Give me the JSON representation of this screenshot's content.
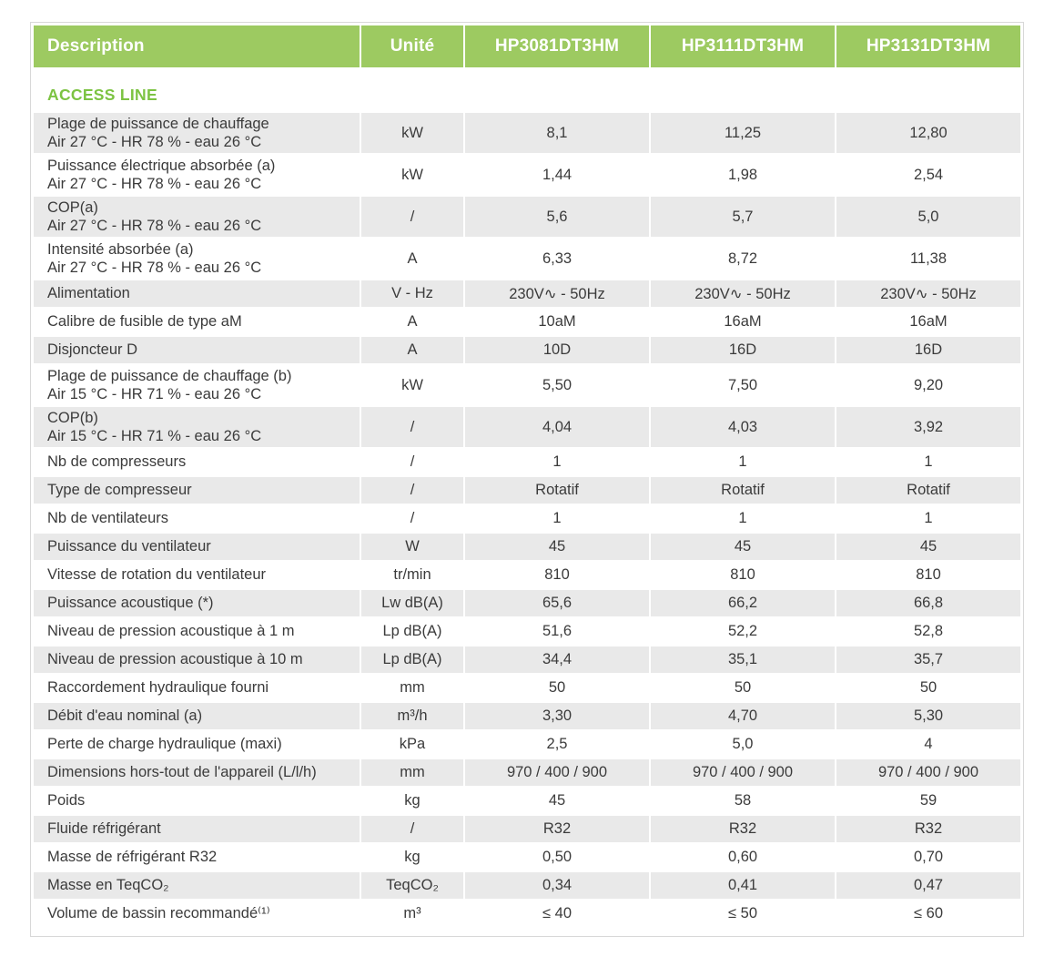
{
  "theme": {
    "header_green": "#9dca61",
    "section_green": "#7cc342",
    "row_gray": "#e9e9e9",
    "text_color": "#3b3b3b",
    "border_color": "#d8d8d8"
  },
  "table": {
    "columns": [
      "Description",
      "Unité",
      "HP3081DT3HM",
      "HP3111DT3HM",
      "HP3131DT3HM"
    ],
    "section": "ACCESS LINE",
    "rows": [
      {
        "label": "Plage de puissance de chauffage",
        "sublabel": "Air 27 °C - HR 78 % - eau 26 °C",
        "unit": "kW",
        "values": [
          "8,1",
          "11,25",
          "12,80"
        ]
      },
      {
        "label": "Puissance électrique absorbée (a)",
        "sublabel": "Air 27 °C - HR 78 % - eau 26 °C",
        "unit": "kW",
        "values": [
          "1,44",
          "1,98",
          "2,54"
        ]
      },
      {
        "label": "COP(a)",
        "sublabel": "Air 27 °C - HR 78 % - eau 26 °C",
        "unit": "/",
        "values": [
          "5,6",
          "5,7",
          "5,0"
        ]
      },
      {
        "label": "Intensité absorbée (a)",
        "sublabel": "Air 27 °C - HR 78 % - eau 26 °C",
        "unit": "A",
        "values": [
          "6,33",
          "8,72",
          "11,38"
        ]
      },
      {
        "label": "Alimentation",
        "unit": "V - Hz",
        "values": [
          "230V∿ - 50Hz",
          "230V∿ - 50Hz",
          "230V∿ - 50Hz"
        ]
      },
      {
        "label": "Calibre de fusible de type aM",
        "unit": "A",
        "values": [
          "10aM",
          "16aM",
          "16aM"
        ]
      },
      {
        "label": "Disjoncteur D",
        "unit": "A",
        "values": [
          "10D",
          "16D",
          "16D"
        ]
      },
      {
        "label": "Plage de puissance de chauffage (b)",
        "sublabel": "Air 15 °C - HR 71 % - eau 26 °C",
        "unit": "kW",
        "values": [
          "5,50",
          "7,50",
          "9,20"
        ]
      },
      {
        "label": "COP(b)",
        "sublabel": "Air 15 °C - HR 71 % - eau 26 °C",
        "unit": "/",
        "values": [
          "4,04",
          "4,03",
          "3,92"
        ]
      },
      {
        "label": "Nb de compresseurs",
        "unit": "/",
        "values": [
          "1",
          "1",
          "1"
        ]
      },
      {
        "label": "Type de compresseur",
        "unit": "/",
        "values": [
          "Rotatif",
          "Rotatif",
          "Rotatif"
        ]
      },
      {
        "label": "Nb de ventilateurs",
        "unit": "/",
        "values": [
          "1",
          "1",
          "1"
        ]
      },
      {
        "label": "Puissance du ventilateur",
        "unit": "W",
        "values": [
          "45",
          "45",
          "45"
        ]
      },
      {
        "label": "Vitesse de rotation du ventilateur",
        "unit": "tr/min",
        "values": [
          "810",
          "810",
          "810"
        ]
      },
      {
        "label": "Puissance acoustique (*)",
        "unit": "Lw dB(A)",
        "values": [
          "65,6",
          "66,2",
          "66,8"
        ]
      },
      {
        "label": "Niveau de pression acoustique à 1 m",
        "unit": "Lp dB(A)",
        "values": [
          "51,6",
          "52,2",
          "52,8"
        ]
      },
      {
        "label": "Niveau de pression acoustique à 10 m",
        "unit": "Lp dB(A)",
        "values": [
          "34,4",
          "35,1",
          "35,7"
        ]
      },
      {
        "label": "Raccordement hydraulique fourni",
        "unit": "mm",
        "values": [
          "50",
          "50",
          "50"
        ]
      },
      {
        "label": "Débit d'eau nominal (a)",
        "unit": "m³/h",
        "values": [
          "3,30",
          "4,70",
          "5,30"
        ]
      },
      {
        "label": "Perte de charge hydraulique (maxi)",
        "unit": "kPa",
        "values": [
          "2,5",
          "5,0",
          "4"
        ]
      },
      {
        "label": "Dimensions hors-tout de l'appareil (L/l/h)",
        "unit": "mm",
        "values": [
          "970 / 400 / 900",
          "970 / 400 / 900",
          "970 / 400 / 900"
        ]
      },
      {
        "label": "Poids",
        "unit": "kg",
        "values": [
          "45",
          "58",
          "59"
        ]
      },
      {
        "label": "Fluide réfrigérant",
        "unit": "/",
        "values": [
          "R32",
          "R32",
          "R32"
        ]
      },
      {
        "label": "Masse de réfrigérant R32",
        "unit": "kg",
        "values": [
          "0,50",
          "0,60",
          "0,70"
        ]
      },
      {
        "label": "Masse en TeqCO₂",
        "unit": "TeqCO₂",
        "values": [
          "0,34",
          "0,41",
          "0,47"
        ]
      },
      {
        "label": "Volume de bassin recommandé⁽¹⁾",
        "unit": "m³",
        "values": [
          "≤ 40",
          "≤ 50",
          "≤ 60"
        ]
      }
    ]
  }
}
